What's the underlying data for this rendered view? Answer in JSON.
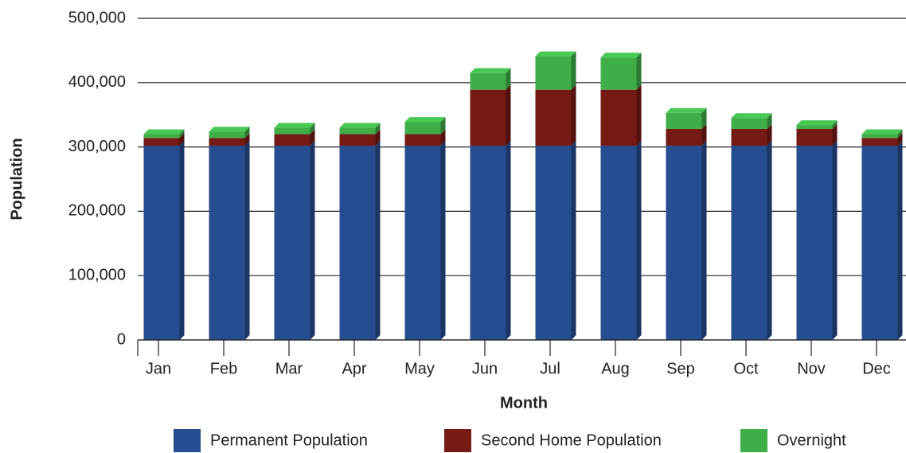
{
  "chart_data": {
    "type": "stacked_bar",
    "y_label": "Population",
    "x_label": "Month",
    "categories": [
      "Jan",
      "Feb",
      "Mar",
      "Apr",
      "May",
      "Jun",
      "Jul",
      "Aug",
      "Sep",
      "Oct",
      "Nov",
      "Dec"
    ],
    "series": [
      {
        "name": "Permanent Population",
        "color": "#264d8f",
        "values": [
          302000,
          302000,
          302000,
          302000,
          302000,
          302000,
          302000,
          302000,
          302000,
          302000,
          302000,
          302000
        ]
      },
      {
        "name": "Second Home Population",
        "color": "#761a15",
        "values": [
          12000,
          12000,
          18000,
          18000,
          18000,
          87000,
          87000,
          87000,
          26000,
          26000,
          26000,
          12000
        ]
      },
      {
        "name": "Overnight",
        "color": "#3fae49",
        "values": [
          6000,
          10000,
          10000,
          10000,
          19000,
          26000,
          52000,
          50000,
          25000,
          17000,
          6000,
          6000
        ]
      }
    ],
    "ylim": [
      0,
      500000
    ],
    "yticks": [
      0,
      {
        "value": 100000,
        "label": "100,000"
      },
      {
        "value": 200000,
        "label": "200,000"
      },
      {
        "value": 300000,
        "label": "300,000"
      },
      {
        "value": 400000,
        "label": "400,000"
      },
      {
        "value": 500000,
        "label": "500,000"
      }
    ],
    "grid": true,
    "legend": "bottom"
  }
}
